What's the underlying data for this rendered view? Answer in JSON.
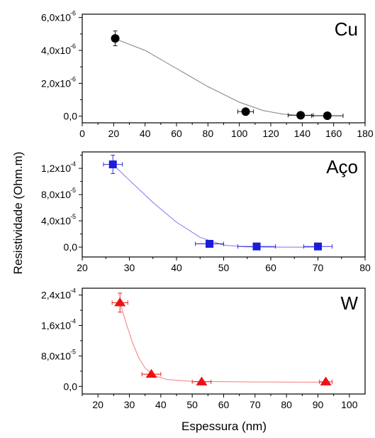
{
  "figure": {
    "ylabel": "Resistividade (Ohm.m)",
    "xlabel": "Espessura (nm)"
  },
  "chart_data": [
    {
      "type": "scatter",
      "label": "Cu",
      "marker": "circle",
      "color": "#000000",
      "fit_color": "#808080",
      "xlim": [
        0,
        180
      ],
      "xticks": [
        0,
        20,
        40,
        60,
        80,
        100,
        120,
        140,
        160,
        180
      ],
      "ylim": [
        -4e-07,
        6.2e-06
      ],
      "yticks": [
        {
          "v": 0,
          "m": "0,0",
          "e": ""
        },
        {
          "v": 2e-06,
          "m": "2,0x10",
          "e": "-6"
        },
        {
          "v": 4e-06,
          "m": "4,0x10",
          "e": "-6"
        },
        {
          "v": 6e-06,
          "m": "6,0x10",
          "e": "-6"
        }
      ],
      "points": [
        {
          "x": 21,
          "y": 4.73e-06,
          "xerr": 2,
          "yerr": 4.5e-07
        },
        {
          "x": 104,
          "y": 2.8e-07,
          "xerr": 5,
          "yerr": 1e-07
        },
        {
          "x": 139,
          "y": 6e-08,
          "xerr": 8,
          "yerr": 1e-07
        },
        {
          "x": 156,
          "y": 3e-08,
          "xerr": 10,
          "yerr": 1e-07
        }
      ],
      "fit": [
        {
          "x": 21,
          "y": 4.7e-06
        },
        {
          "x": 40,
          "y": 4e-06
        },
        {
          "x": 60,
          "y": 2.9e-06
        },
        {
          "x": 80,
          "y": 1.8e-06
        },
        {
          "x": 100,
          "y": 8.5e-07
        },
        {
          "x": 115,
          "y": 3.5e-07
        },
        {
          "x": 128,
          "y": 1.2e-07
        },
        {
          "x": 140,
          "y": 4e-08
        },
        {
          "x": 156,
          "y": 3e-08
        }
      ]
    },
    {
      "type": "scatter",
      "label": "Aço",
      "marker": "square",
      "color": "#1c1cd9",
      "fit_color": "#7a7aee",
      "xlim": [
        20,
        80
      ],
      "xticks": [
        20,
        30,
        40,
        50,
        60,
        70,
        80
      ],
      "ylim": [
        -1.5e-05,
        0.000145
      ],
      "yticks": [
        {
          "v": 0,
          "m": "0,0",
          "e": ""
        },
        {
          "v": 4e-05,
          "m": "4,0x10",
          "e": "-5"
        },
        {
          "v": 8e-05,
          "m": "8,0x10",
          "e": "-5"
        },
        {
          "v": 0.00012,
          "m": "1,2x10",
          "e": "-4"
        }
      ],
      "points": [
        {
          "x": 26.5,
          "y": 0.000126,
          "xerr": 2,
          "yerr": 1.4e-05
        },
        {
          "x": 47,
          "y": 5e-06,
          "xerr": 3,
          "yerr": 1e-06
        },
        {
          "x": 57,
          "y": 1e-06,
          "xerr": 4,
          "yerr": 1e-06
        },
        {
          "x": 70,
          "y": 1e-06,
          "xerr": 3,
          "yerr": 1e-06
        }
      ],
      "fit": [
        {
          "x": 26.5,
          "y": 0.000126
        },
        {
          "x": 30,
          "y": 0.000102
        },
        {
          "x": 35,
          "y": 6.8e-05
        },
        {
          "x": 40,
          "y": 3.8e-05
        },
        {
          "x": 45,
          "y": 1.5e-05
        },
        {
          "x": 50,
          "y": 3e-06
        },
        {
          "x": 55,
          "y": 5e-07
        },
        {
          "x": 60,
          "y": 0
        },
        {
          "x": 70,
          "y": 0
        }
      ]
    },
    {
      "type": "scatter",
      "label": "W",
      "marker": "triangle",
      "color": "#ee1111",
      "fit_color": "#f47a7a",
      "xlim": [
        15,
        105
      ],
      "xticks": [
        20,
        30,
        40,
        50,
        60,
        70,
        80,
        90,
        100
      ],
      "ylim": [
        -2e-05,
        0.000258
      ],
      "yticks": [
        {
          "v": 0,
          "m": "0,0",
          "e": ""
        },
        {
          "v": 8e-05,
          "m": "8,0x10",
          "e": "-5"
        },
        {
          "v": 0.00016,
          "m": "1,6x10",
          "e": "-4"
        },
        {
          "v": 0.00024,
          "m": "2,4x10",
          "e": "-4"
        }
      ],
      "points": [
        {
          "x": 27,
          "y": 0.00022,
          "xerr": 2.5,
          "yerr": 2.5e-05
        },
        {
          "x": 37,
          "y": 3.2e-05,
          "xerr": 3,
          "yerr": 4e-06
        },
        {
          "x": 53,
          "y": 1.2e-05,
          "xerr": 3,
          "yerr": 2e-06
        },
        {
          "x": 92.5,
          "y": 1.2e-05,
          "xerr": 2,
          "yerr": 2e-06
        }
      ],
      "fit": [
        {
          "x": 27,
          "y": 0.00022
        },
        {
          "x": 29,
          "y": 0.000165
        },
        {
          "x": 31,
          "y": 0.000115
        },
        {
          "x": 33,
          "y": 7.5e-05
        },
        {
          "x": 35,
          "y": 4.8e-05
        },
        {
          "x": 38,
          "y": 2.8e-05
        },
        {
          "x": 42,
          "y": 1.8e-05
        },
        {
          "x": 50,
          "y": 1.3e-05
        },
        {
          "x": 70,
          "y": 1.15e-05
        },
        {
          "x": 92.5,
          "y": 1.1e-05
        }
      ]
    }
  ]
}
